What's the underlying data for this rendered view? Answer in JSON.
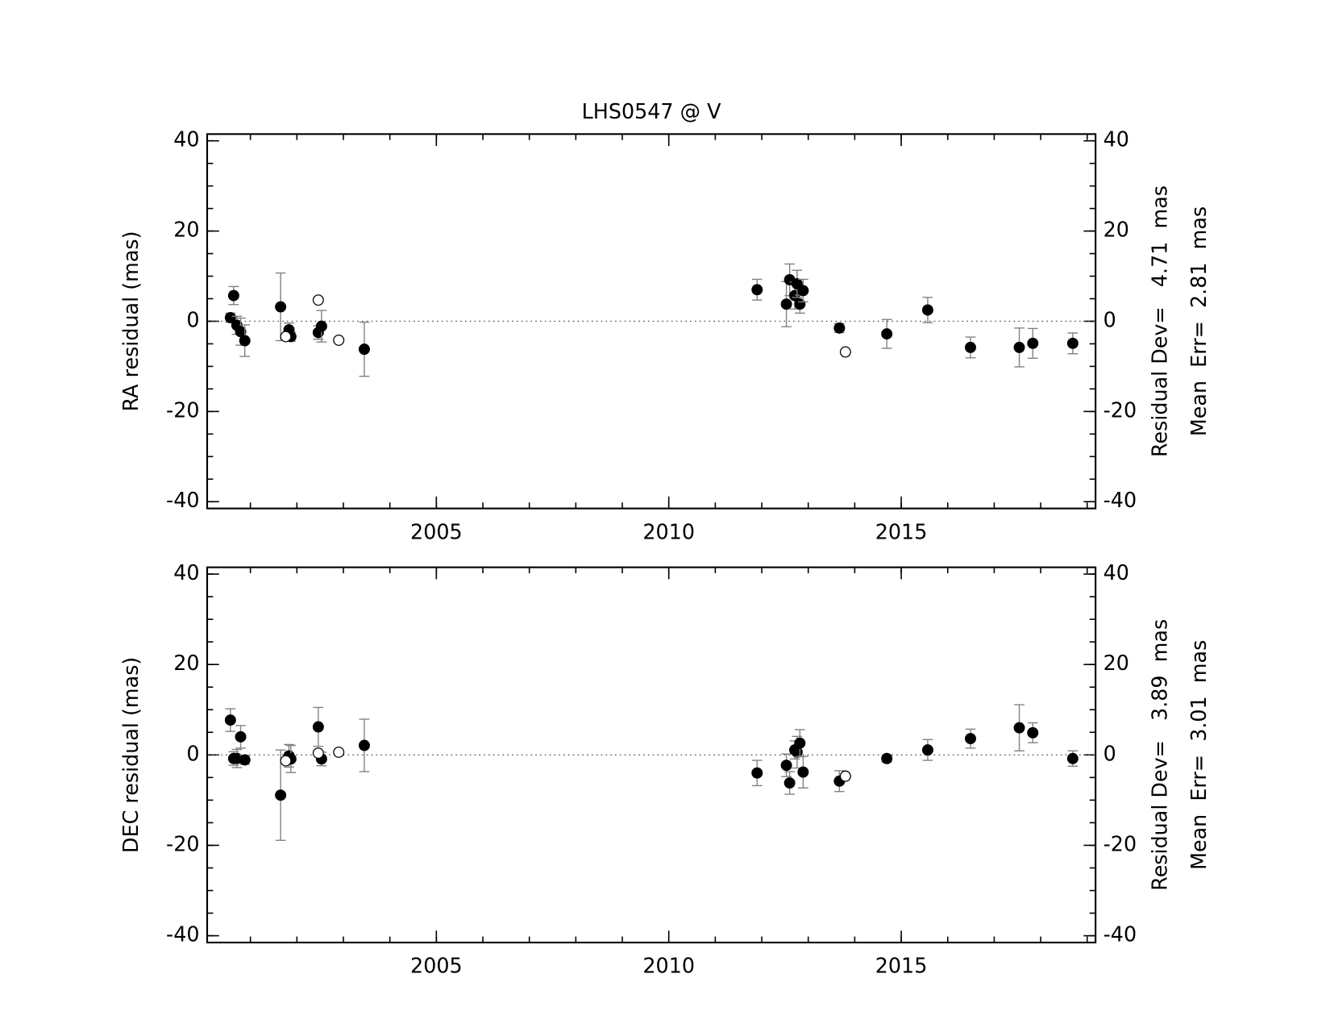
{
  "chart_data": [
    {
      "type": "scatter",
      "title": "LHS0547 @ V",
      "y_label": "RA residual (mas)",
      "annotations": [
        "Residual Dev=   4.71  mas",
        "Mean  Err=  2.81  mas"
      ],
      "xlim": [
        2000.07,
        2019.18
      ],
      "xticks": [
        2005,
        2010,
        2015
      ],
      "ylim": [
        -41.5,
        41.5
      ],
      "yticks": [
        -40,
        -20,
        0,
        20,
        40
      ],
      "reference_line": 0,
      "error_color": "#808080",
      "series": [
        {
          "marker": "filled",
          "color": "#000000",
          "x": [
            2000.57,
            2000.64,
            2000.71,
            2000.79,
            2000.88,
            2001.65,
            2001.83,
            2001.87,
            2002.46,
            2002.53,
            2003.45,
            2011.9,
            2012.53,
            2012.6,
            2012.71,
            2012.76,
            2012.82,
            2012.89,
            2013.67,
            2014.69,
            2015.57,
            2016.49,
            2017.54,
            2017.83,
            2018.69
          ],
          "values": [
            0.8,
            5.7,
            -0.9,
            -2.3,
            -4.3,
            3.2,
            -1.9,
            -3.4,
            -2.5,
            -1.1,
            -6.2,
            7.0,
            3.8,
            9.2,
            5.7,
            8.3,
            3.8,
            6.8,
            -1.5,
            -2.8,
            2.5,
            -5.8,
            -5.8,
            -4.9,
            -4.9
          ],
          "errors": [
            1,
            2,
            2,
            3,
            3.5,
            7.5,
            1.5,
            1,
            1.5,
            3.5,
            6,
            2.3,
            5,
            3.5,
            3,
            3,
            2,
            2.5,
            1,
            3.2,
            2.8,
            2.3,
            4.3,
            3.3,
            2.3
          ]
        },
        {
          "marker": "open",
          "color": "#000000",
          "x": [
            2001.76,
            2002.46,
            2002.9,
            2013.8
          ],
          "values": [
            -3.4,
            4.7,
            -4.2,
            -6.8
          ]
        }
      ]
    },
    {
      "type": "scatter",
      "y_label": "DEC residual (mas)",
      "annotations": [
        "Residual Dev=   3.89  mas",
        "Mean  Err=  3.01  mas"
      ],
      "xlim": [
        2000.07,
        2019.18
      ],
      "xticks": [
        2005,
        2010,
        2015
      ],
      "ylim": [
        -41.5,
        41.5
      ],
      "yticks": [
        -40,
        -20,
        0,
        20,
        40
      ],
      "reference_line": 0,
      "error_color": "#808080",
      "series": [
        {
          "marker": "filled",
          "color": "#000000",
          "x": [
            2000.57,
            2000.64,
            2000.71,
            2000.79,
            2000.88,
            2001.65,
            2001.83,
            2001.87,
            2002.46,
            2002.53,
            2003.45,
            2011.9,
            2012.53,
            2012.6,
            2012.71,
            2012.76,
            2012.82,
            2012.89,
            2013.67,
            2014.69,
            2015.57,
            2016.49,
            2017.54,
            2017.83,
            2018.69
          ],
          "values": [
            7.7,
            -0.8,
            -0.8,
            4.0,
            -1.1,
            -8.9,
            -0.2,
            -0.9,
            6.2,
            -0.9,
            2.1,
            -4.0,
            -2.3,
            -6.2,
            1.1,
            0.6,
            2.6,
            -3.8,
            -5.8,
            -0.8,
            1.1,
            3.6,
            6.0,
            4.9,
            -0.8
          ],
          "errors": [
            2.5,
            1.5,
            2,
            2.5,
            1,
            10,
            2.5,
            3,
            4.3,
            1.5,
            5.8,
            2.8,
            2.5,
            2.5,
            2,
            3.5,
            3,
            3.5,
            2.3,
            0.8,
            2.3,
            2.1,
            5.1,
            2.2,
            1.7
          ]
        },
        {
          "marker": "open",
          "color": "#000000",
          "x": [
            2001.76,
            2002.46,
            2002.9,
            2013.8
          ],
          "values": [
            -1.3,
            0.4,
            0.6,
            -4.7
          ]
        }
      ]
    }
  ]
}
